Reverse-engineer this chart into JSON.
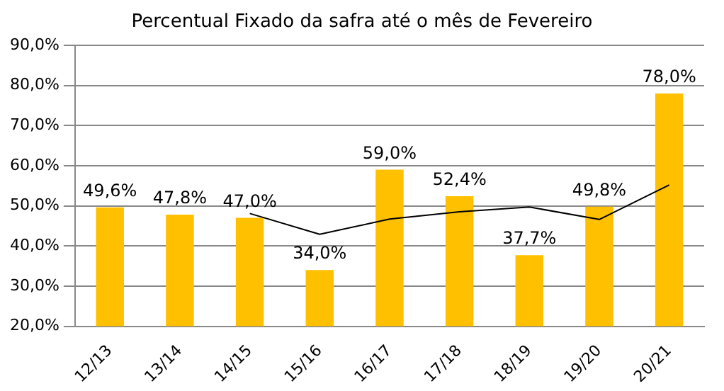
{
  "chart_data": {
    "type": "bar",
    "title": "Percentual Fixado da safra até o mês de Fevereiro",
    "categories": [
      "12/13",
      "13/14",
      "14/15",
      "15/16",
      "16/17",
      "17/18",
      "18/19",
      "19/20",
      "20/21"
    ],
    "series": [
      {
        "color": "#ffc000",
        "values": [
          49.6,
          47.8,
          47.0,
          34.0,
          59.0,
          52.4,
          37.7,
          49.8,
          78.0
        ],
        "value_labels": [
          "49,6%",
          "47,8%",
          "47,0%",
          "34,0%",
          "59,0%",
          "52,4%",
          "37,7%",
          "49,8%",
          "78,0%"
        ]
      },
      {
        "type": "line",
        "color": "#000000",
        "values": [
          null,
          null,
          48.1,
          42.9,
          46.7,
          48.5,
          49.7,
          46.6,
          55.2
        ]
      }
    ],
    "ylim": [
      20,
      90
    ],
    "yticks": [
      {
        "value": 20,
        "label": "20,0%"
      },
      {
        "value": 30,
        "label": "30,0%"
      },
      {
        "value": 40,
        "label": "40,0%"
      },
      {
        "value": 50,
        "label": "50,0%"
      },
      {
        "value": 60,
        "label": "60,0%"
      },
      {
        "value": 70,
        "label": "70,0%"
      },
      {
        "value": 80,
        "label": "80,0%"
      },
      {
        "value": 90,
        "label": "90,0%"
      }
    ],
    "grid": "y",
    "legend": false,
    "marker": "none"
  }
}
